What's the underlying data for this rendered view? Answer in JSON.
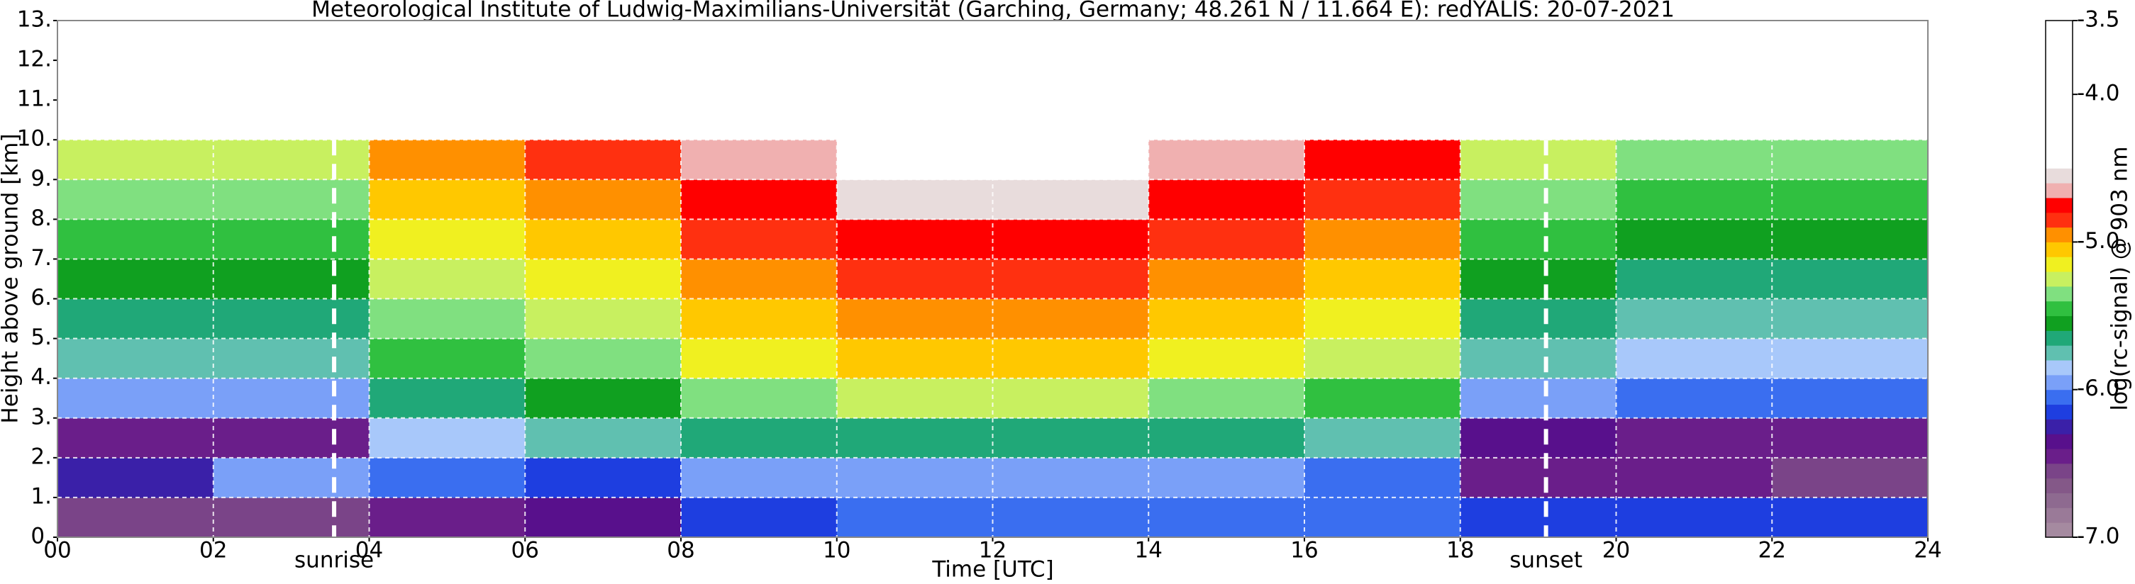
{
  "chart_data": {
    "type": "heatmap",
    "title": "Meteorological Institute of Ludwig-Maximilians-Universität (Garching, Germany; 48.261 N / 11.664 E):    redYALIS: 20-07-2021",
    "xlabel": "Time [UTC]",
    "ylabel": "Height above ground [km]",
    "xlim": [
      0,
      24
    ],
    "xticks": [
      {
        "value": 0,
        "label": "00"
      },
      {
        "value": 2,
        "label": "02"
      },
      {
        "value": 4,
        "label": "04"
      },
      {
        "value": 6,
        "label": "06"
      },
      {
        "value": 8,
        "label": "08"
      },
      10,
      12,
      14,
      16,
      18,
      20,
      22,
      24
    ],
    "ylim": [
      0,
      13
    ],
    "yticks": [
      {
        "value": 0,
        "label": "0."
      },
      {
        "value": 1,
        "label": "1."
      },
      {
        "value": 2,
        "label": "2."
      },
      {
        "value": 3,
        "label": "3."
      },
      {
        "value": 4,
        "label": "4."
      },
      {
        "value": 5,
        "label": "5."
      },
      {
        "value": 6,
        "label": "6."
      },
      {
        "value": 7,
        "label": "7."
      },
      {
        "value": 8,
        "label": "8."
      },
      {
        "value": 9,
        "label": "9."
      },
      {
        "value": 10,
        "label": "10."
      },
      {
        "value": 11,
        "label": "11."
      },
      {
        "value": 12,
        "label": "12."
      },
      {
        "value": 13,
        "label": "13."
      }
    ],
    "grid": true,
    "xbins": [
      0,
      2,
      4,
      6,
      8,
      10,
      12,
      14,
      16,
      18,
      20,
      22,
      24
    ],
    "ybins": [
      0,
      1,
      2,
      3,
      4,
      5,
      6,
      7,
      8,
      9,
      10
    ],
    "z": [
      [
        -6.6,
        -6.6,
        -6.5,
        -6.4,
        -6.2,
        -6.1,
        -6.1,
        -6.1,
        -6.1,
        -6.2,
        -6.2,
        -6.2
      ],
      [
        -6.3,
        -6.0,
        -6.1,
        -6.2,
        -6.0,
        -6.0,
        -6.0,
        -6.0,
        -6.1,
        -6.5,
        -6.5,
        -6.6
      ],
      [
        -6.5,
        -6.5,
        -5.9,
        -5.8,
        -5.7,
        -5.7,
        -5.7,
        -5.7,
        -5.8,
        -6.4,
        -6.5,
        -6.5
      ],
      [
        -6.0,
        -6.0,
        -5.7,
        -5.6,
        -5.4,
        -5.3,
        -5.3,
        -5.4,
        -5.5,
        -6.0,
        -6.1,
        -6.1
      ],
      [
        -5.8,
        -5.8,
        -5.5,
        -5.4,
        -5.2,
        -5.1,
        -5.1,
        -5.2,
        -5.3,
        -5.8,
        -5.9,
        -5.9
      ],
      [
        -5.7,
        -5.7,
        -5.4,
        -5.3,
        -5.1,
        -5.0,
        -5.0,
        -5.1,
        -5.2,
        -5.7,
        -5.8,
        -5.8
      ],
      [
        -5.6,
        -5.6,
        -5.3,
        -5.2,
        -5.0,
        -4.9,
        -4.9,
        -5.0,
        -5.1,
        -5.6,
        -5.7,
        -5.7
      ],
      [
        -5.5,
        -5.5,
        -5.2,
        -5.1,
        -4.9,
        -4.8,
        -4.8,
        -4.9,
        -5.0,
        -5.5,
        -5.6,
        -5.6
      ],
      [
        -5.4,
        -5.4,
        -5.1,
        -5.0,
        -4.8,
        -4.6,
        -4.6,
        -4.8,
        -4.9,
        -5.4,
        -5.5,
        -5.5
      ],
      [
        -5.3,
        -5.3,
        -5.0,
        -4.9,
        -4.7,
        -4.5,
        -4.5,
        -4.7,
        -4.8,
        -5.3,
        -5.4,
        -5.4
      ]
    ],
    "annotations": [
      {
        "text": "sunrise",
        "x": 3.55
      },
      {
        "text": "sunset",
        "x": 19.1
      }
    ],
    "colorbar": {
      "label": "log(rc-signal) @ 903 nm",
      "zlim": [
        -7.0,
        -3.5
      ],
      "zticks": [
        {
          "value": -3.5,
          "label": "-3.5"
        },
        {
          "value": -4.0,
          "label": "-4.0"
        },
        {
          "value": -5.0,
          "label": "-5.0"
        },
        {
          "value": -6.0,
          "label": "-6.0"
        },
        {
          "value": -7.0,
          "label": "-7.0"
        }
      ],
      "bounds": [
        -7.0,
        -6.9,
        -6.8,
        -6.7,
        -6.6,
        -6.5,
        -6.4,
        -6.3,
        -6.2,
        -6.1,
        -6.0,
        -5.9,
        -5.8,
        -5.7,
        -5.6,
        -5.5,
        -5.4,
        -5.3,
        -5.2,
        -5.1,
        -5.0,
        -4.9,
        -4.8,
        -4.7,
        -4.6,
        -4.5,
        -3.5
      ],
      "colors": [
        "#a58aa0",
        "#9a7a98",
        "#8e6a90",
        "#845888",
        "#7a4488",
        "#6a1e8a",
        "#58108c",
        "#3a20a8",
        "#1e3ee0",
        "#3a6ef0",
        "#7aa0f8",
        "#a8c8fa",
        "#60c0b0",
        "#20a878",
        "#10a020",
        "#30c040",
        "#80e080",
        "#c8f060",
        "#f0f020",
        "#ffc800",
        "#ff9000",
        "#ff3010",
        "#ff0000",
        "#f0b0b0",
        "#e8dcdc",
        "#ffffff"
      ]
    }
  }
}
